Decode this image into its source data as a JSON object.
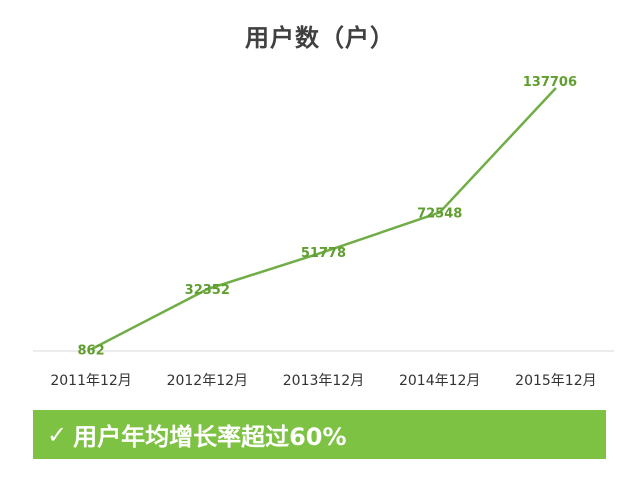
{
  "title": "用户数（户）",
  "accent_color": "#70ad47",
  "banner": {
    "check_icon": "✓",
    "text": "用户年均增长率超过60%",
    "background": "#7dc242"
  },
  "chart_data": {
    "type": "line",
    "title": "用户数（户）",
    "categories": [
      "2011年12月",
      "2012年12月",
      "2013年12月",
      "2014年12月",
      "2015年12月"
    ],
    "series": [
      {
        "values": [
          862,
          32352,
          51778,
          72548,
          137706
        ]
      }
    ],
    "data_labels": [
      "862",
      "32352",
      "51778",
      "72548",
      "137706"
    ],
    "ylim": [
      0,
      150000
    ],
    "grid": false,
    "legend": "none"
  }
}
